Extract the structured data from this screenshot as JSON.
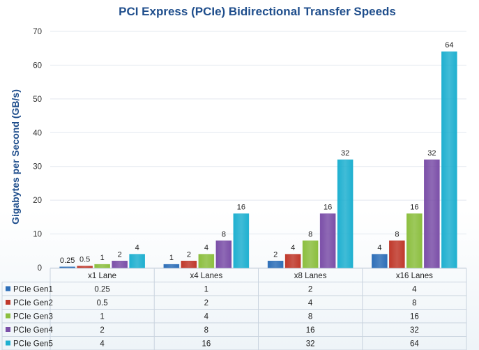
{
  "chart_data": {
    "type": "bar",
    "title": "PCI Express (PCIe) Bidirectional Transfer Speeds",
    "ylabel": "Gigabytes per Second (GB/s)",
    "xlabel": "",
    "ylim": [
      0,
      70
    ],
    "yticks": [
      "0",
      "10",
      "20",
      "30",
      "40",
      "50",
      "60",
      "70"
    ],
    "grid": true,
    "legend": "data-table",
    "categories": [
      "x1 Lane",
      "x4 Lanes",
      "x8 Lanes",
      "x16 Lanes"
    ],
    "series": [
      {
        "name": "PCIe Gen1",
        "color": "#2e6fb8",
        "values": [
          0.25,
          1,
          2,
          4
        ],
        "labels": [
          "0.25",
          "1",
          "2",
          "4"
        ]
      },
      {
        "name": "PCIe Gen2",
        "color": "#c0392b",
        "values": [
          0.5,
          2,
          4,
          8
        ],
        "labels": [
          "0.5",
          "2",
          "4",
          "8"
        ]
      },
      {
        "name": "PCIe Gen3",
        "color": "#8cbf3f",
        "values": [
          1,
          4,
          8,
          16
        ],
        "labels": [
          "1",
          "4",
          "8",
          "16"
        ]
      },
      {
        "name": "PCIe Gen4",
        "color": "#7b4fa8",
        "values": [
          2,
          8,
          16,
          32
        ],
        "labels": [
          "2",
          "8",
          "16",
          "32"
        ]
      },
      {
        "name": "PCIe Gen5",
        "color": "#1fb0d0",
        "values": [
          4,
          16,
          32,
          64
        ],
        "labels": [
          "4",
          "16",
          "32",
          "64"
        ]
      }
    ]
  }
}
